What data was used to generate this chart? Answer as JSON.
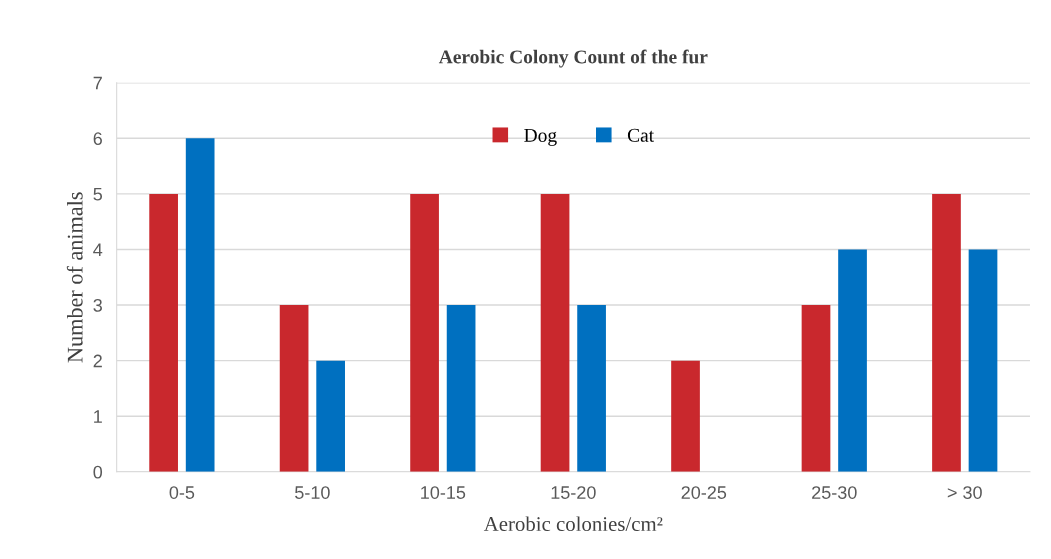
{
  "chart_data": {
    "type": "bar",
    "title": "Aerobic Colony Count of the fur",
    "xlabel": "Aerobic colonies/cm²",
    "ylabel": "Number of animals",
    "categories": [
      "0-5",
      "5-10",
      "10-15",
      "15-20",
      "20-25",
      "25-30",
      "> 30"
    ],
    "series": [
      {
        "name": "Dog",
        "color": "#c9282d",
        "values": [
          5,
          3,
          5,
          5,
          2,
          3,
          5
        ]
      },
      {
        "name": "Cat",
        "color": "#0070c0",
        "values": [
          6,
          2,
          3,
          3,
          0,
          4,
          4
        ]
      }
    ],
    "ylim": [
      0,
      7
    ],
    "yticks": [
      0,
      1,
      2,
      3,
      4,
      5,
      6,
      7
    ],
    "grid": "y",
    "legend": "top"
  }
}
